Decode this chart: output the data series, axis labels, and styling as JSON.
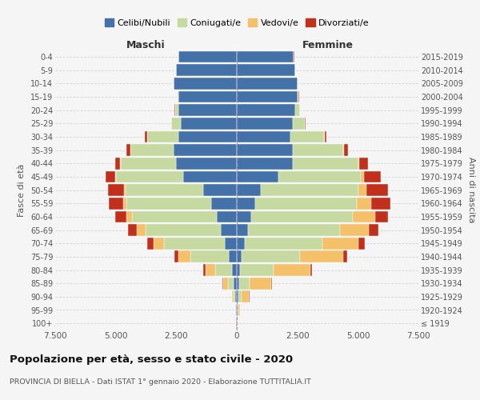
{
  "age_groups": [
    "100+",
    "95-99",
    "90-94",
    "85-89",
    "80-84",
    "75-79",
    "70-74",
    "65-69",
    "60-64",
    "55-59",
    "50-54",
    "45-49",
    "40-44",
    "35-39",
    "30-34",
    "25-29",
    "20-24",
    "15-19",
    "10-14",
    "5-9",
    "0-4"
  ],
  "birth_years": [
    "≤ 1919",
    "1920-1924",
    "1925-1929",
    "1930-1934",
    "1935-1939",
    "1940-1944",
    "1945-1949",
    "1950-1954",
    "1955-1959",
    "1960-1964",
    "1965-1969",
    "1970-1974",
    "1975-1979",
    "1980-1984",
    "1985-1989",
    "1990-1994",
    "1995-1999",
    "2000-2004",
    "2005-2009",
    "2010-2014",
    "2015-2019"
  ],
  "male_celibi": [
    10,
    30,
    60,
    120,
    200,
    320,
    500,
    680,
    820,
    1050,
    1400,
    2200,
    2500,
    2600,
    2400,
    2300,
    2400,
    2400,
    2600,
    2500,
    2400
  ],
  "male_coniugati": [
    5,
    30,
    80,
    250,
    700,
    1600,
    2500,
    3100,
    3500,
    3500,
    3200,
    2800,
    2300,
    1800,
    1300,
    400,
    150,
    30,
    10,
    5,
    5
  ],
  "male_vedovi": [
    3,
    20,
    60,
    200,
    400,
    500,
    450,
    350,
    250,
    150,
    60,
    30,
    10,
    5,
    5,
    5,
    10,
    5,
    2,
    2,
    2
  ],
  "male_divorziati": [
    2,
    5,
    10,
    20,
    80,
    150,
    250,
    350,
    450,
    600,
    650,
    400,
    200,
    150,
    80,
    20,
    10,
    5,
    2,
    2,
    2
  ],
  "female_celibi": [
    10,
    30,
    50,
    80,
    130,
    200,
    320,
    450,
    600,
    750,
    1000,
    1700,
    2300,
    2300,
    2200,
    2300,
    2400,
    2500,
    2500,
    2400,
    2350
  ],
  "female_coniugati": [
    5,
    30,
    150,
    450,
    1400,
    2400,
    3200,
    3800,
    4200,
    4200,
    4000,
    3400,
    2700,
    2100,
    1400,
    500,
    200,
    50,
    10,
    5,
    5
  ],
  "female_vedovi": [
    3,
    80,
    300,
    900,
    1500,
    1800,
    1500,
    1200,
    900,
    600,
    350,
    150,
    60,
    30,
    15,
    10,
    5,
    5,
    2,
    2,
    2
  ],
  "female_divorziati": [
    1,
    5,
    10,
    30,
    80,
    150,
    250,
    400,
    550,
    800,
    900,
    700,
    350,
    150,
    80,
    30,
    10,
    5,
    2,
    2,
    2
  ],
  "colors": {
    "celibi": "#4472a8",
    "coniugati": "#c5d9a0",
    "vedovi": "#f4c16a",
    "divorziati": "#c0301c"
  },
  "xlim": 7500,
  "title": "Popolazione per età, sesso e stato civile - 2020",
  "subtitle": "PROVINCIA DI BIELLA - Dati ISTAT 1° gennaio 2020 - Elaborazione TUTTITALIA.IT",
  "xlabel_left": "Maschi",
  "xlabel_right": "Femmine",
  "ylabel_left": "Fasce di età",
  "ylabel_right": "Anni di nascita",
  "bg_color": "#f5f5f5",
  "grid_color": "#cccccc"
}
